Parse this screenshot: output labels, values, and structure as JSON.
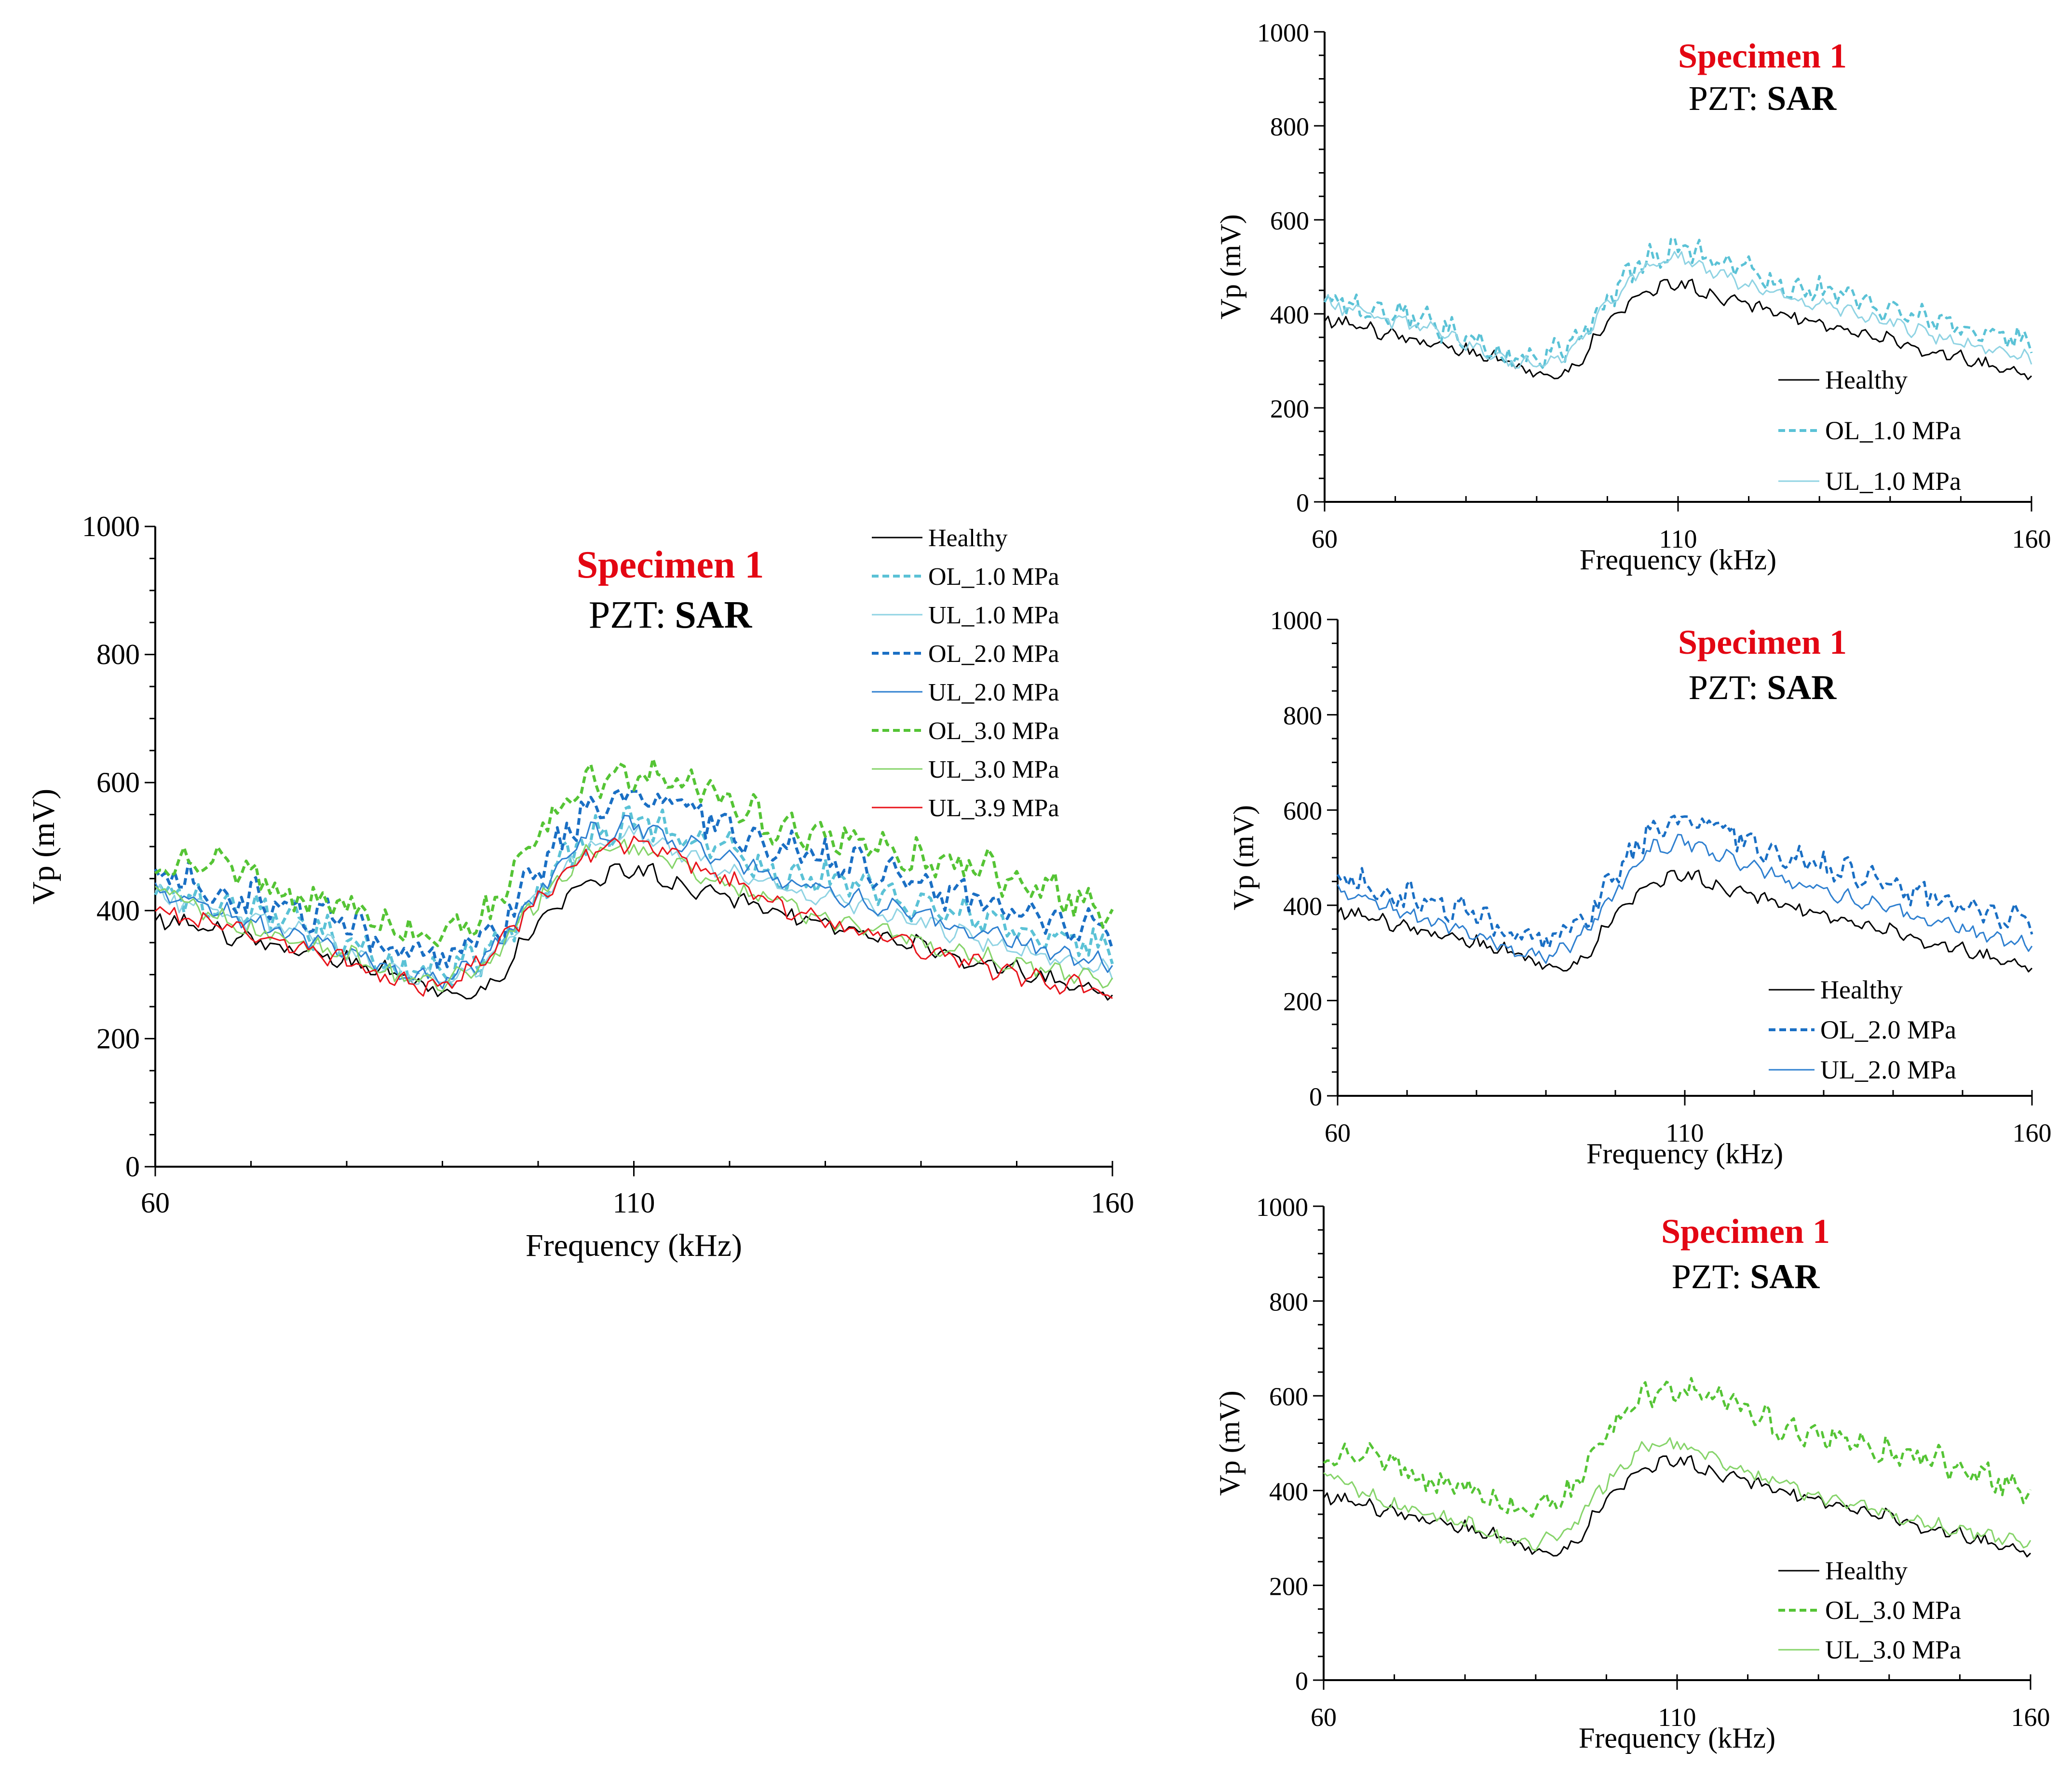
{
  "colors": {
    "Healthy": "#000000",
    "OL_1.0 MPa": "#5bc2d6",
    "UL_1.0 MPa": "#8fd3e3",
    "OL_2.0 MPa": "#1a6fc4",
    "UL_2.0 MPa": "#2f80d0",
    "OL_3.0 MPa": "#55c435",
    "UL_3.0 MPa": "#86d46a",
    "UL_3.9 MPa": "#e8141b"
  },
  "chart_data": [
    {
      "id": "main",
      "type": "line",
      "title": "Specimen 1",
      "subtitle_prefix": "PZT:",
      "subtitle_bold": "SAR",
      "xlabel": "Frequency (kHz)",
      "ylabel": "Vp (mV)",
      "xlim": [
        60,
        160
      ],
      "ylim": [
        0,
        1000
      ],
      "xticks": [
        "60",
        "110",
        "160"
      ],
      "yticks": [
        "0",
        "200",
        "400",
        "600",
        "800",
        "1000"
      ],
      "legend_position": "top-right",
      "x": [
        60,
        65,
        70,
        75,
        80,
        85,
        90,
        95,
        100,
        105,
        110,
        115,
        120,
        125,
        130,
        135,
        140,
        145,
        150,
        155,
        160
      ],
      "series": [
        {
          "name": "Healthy",
          "dash": "solid",
          "width": 1,
          "values": [
            390,
            370,
            350,
            335,
            320,
            300,
            275,
            280,
            380,
            450,
            465,
            440,
            420,
            400,
            380,
            360,
            345,
            325,
            305,
            290,
            270
          ]
        },
        {
          "name": "OL_1.0 MPa",
          "dash": "dash",
          "width": 2,
          "values": [
            440,
            415,
            400,
            380,
            350,
            310,
            300,
            340,
            430,
            510,
            545,
            510,
            490,
            460,
            450,
            430,
            410,
            390,
            370,
            350,
            335
          ]
        },
        {
          "name": "UL_1.0 MPa",
          "dash": "solid",
          "width": 1,
          "values": [
            425,
            405,
            385,
            365,
            340,
            300,
            290,
            320,
            420,
            500,
            525,
            490,
            460,
            440,
            420,
            400,
            380,
            360,
            340,
            320,
            305
          ]
        },
        {
          "name": "OL_2.0 MPa",
          "dash": "dash",
          "width": 2,
          "values": [
            460,
            440,
            420,
            400,
            380,
            340,
            330,
            360,
            460,
            560,
            580,
            560,
            530,
            500,
            480,
            460,
            440,
            420,
            400,
            380,
            370
          ]
        },
        {
          "name": "UL_2.0 MPa",
          "dash": "solid",
          "width": 1,
          "values": [
            430,
            410,
            380,
            360,
            340,
            300,
            290,
            330,
            430,
            520,
            535,
            505,
            480,
            450,
            430,
            410,
            390,
            370,
            350,
            330,
            320
          ]
        },
        {
          "name": "OL_3.0 MPa",
          "dash": "dash",
          "width": 2,
          "values": [
            470,
            480,
            450,
            420,
            410,
            370,
            360,
            400,
            520,
            600,
            610,
            600,
            570,
            530,
            520,
            500,
            480,
            470,
            450,
            420,
            400
          ]
        },
        {
          "name": "UL_3.0 MPa",
          "dash": "solid",
          "width": 1,
          "values": [
            440,
            400,
            370,
            350,
            330,
            300,
            285,
            320,
            420,
            490,
            500,
            470,
            440,
            410,
            390,
            370,
            350,
            330,
            320,
            300,
            290
          ]
        },
        {
          "name": "UL_3.9 MPa",
          "dash": "solid",
          "width": 1,
          "values": [
            400,
            380,
            370,
            340,
            320,
            290,
            280,
            330,
            420,
            490,
            510,
            480,
            450,
            410,
            380,
            360,
            340,
            320,
            300,
            285,
            270
          ]
        }
      ]
    },
    {
      "id": "s1",
      "type": "line",
      "title": "Specimen 1",
      "subtitle_prefix": "PZT:",
      "subtitle_bold": "SAR",
      "xlabel": "Frequency (kHz)",
      "ylabel": "Vp (mV)",
      "xlim": [
        60,
        160
      ],
      "ylim": [
        0,
        1000
      ],
      "xticks": [
        "60",
        "110",
        "160"
      ],
      "yticks": [
        "0",
        "200",
        "400",
        "600",
        "800",
        "1000"
      ],
      "legend_position": "bottom-right",
      "x": [
        60,
        65,
        70,
        75,
        80,
        85,
        90,
        95,
        100,
        105,
        110,
        115,
        120,
        125,
        130,
        135,
        140,
        145,
        150,
        155,
        160
      ],
      "series": [
        {
          "name": "Healthy",
          "dash": "solid",
          "width": 1,
          "values": [
            390,
            370,
            350,
            335,
            320,
            300,
            275,
            280,
            380,
            450,
            465,
            440,
            420,
            400,
            380,
            360,
            345,
            325,
            305,
            290,
            270
          ]
        },
        {
          "name": "OL_1.0 MPa",
          "dash": "dash",
          "width": 2,
          "values": [
            440,
            415,
            400,
            380,
            350,
            310,
            300,
            340,
            430,
            510,
            545,
            510,
            490,
            460,
            450,
            430,
            410,
            390,
            370,
            350,
            335
          ]
        },
        {
          "name": "UL_1.0 MPa",
          "dash": "solid",
          "width": 1,
          "values": [
            425,
            405,
            385,
            365,
            340,
            300,
            290,
            320,
            420,
            500,
            525,
            490,
            460,
            440,
            420,
            400,
            380,
            360,
            340,
            320,
            305
          ]
        }
      ]
    },
    {
      "id": "s2",
      "type": "line",
      "title": "Specimen 1",
      "subtitle_prefix": "PZT:",
      "subtitle_bold": "SAR",
      "xlabel": "Frequency (kHz)",
      "ylabel": "Vp (mV)",
      "xlim": [
        60,
        160
      ],
      "ylim": [
        0,
        1000
      ],
      "xticks": [
        "60",
        "110",
        "160"
      ],
      "yticks": [
        "0",
        "200",
        "400",
        "600",
        "800",
        "1000"
      ],
      "legend_position": "bottom-right",
      "x": [
        60,
        65,
        70,
        75,
        80,
        85,
        90,
        95,
        100,
        105,
        110,
        115,
        120,
        125,
        130,
        135,
        140,
        145,
        150,
        155,
        160
      ],
      "series": [
        {
          "name": "Healthy",
          "dash": "solid",
          "width": 1,
          "values": [
            390,
            370,
            350,
            335,
            320,
            300,
            275,
            280,
            380,
            450,
            465,
            440,
            420,
            400,
            380,
            360,
            345,
            325,
            305,
            290,
            270
          ]
        },
        {
          "name": "OL_2.0 MPa",
          "dash": "dash",
          "width": 2,
          "values": [
            460,
            440,
            420,
            400,
            380,
            340,
            330,
            360,
            460,
            560,
            580,
            560,
            530,
            500,
            480,
            460,
            440,
            420,
            400,
            380,
            370
          ]
        },
        {
          "name": "UL_2.0 MPa",
          "dash": "solid",
          "width": 1,
          "values": [
            430,
            410,
            380,
            360,
            340,
            300,
            290,
            330,
            430,
            520,
            535,
            505,
            480,
            450,
            430,
            410,
            390,
            370,
            350,
            330,
            320
          ]
        }
      ]
    },
    {
      "id": "s3",
      "type": "line",
      "title": "Specimen 1",
      "subtitle_prefix": "PZT:",
      "subtitle_bold": "SAR",
      "xlabel": "Frequency (kHz)",
      "ylabel": "Vp (mV)",
      "xlim": [
        60,
        160
      ],
      "ylim": [
        0,
        1000
      ],
      "xticks": [
        "60",
        "110",
        "160"
      ],
      "yticks": [
        "0",
        "200",
        "400",
        "600",
        "800",
        "1000"
      ],
      "legend_position": "bottom-right",
      "x": [
        60,
        65,
        70,
        75,
        80,
        85,
        90,
        95,
        100,
        105,
        110,
        115,
        120,
        125,
        130,
        135,
        140,
        145,
        150,
        155,
        160
      ],
      "series": [
        {
          "name": "Healthy",
          "dash": "solid",
          "width": 1,
          "values": [
            390,
            370,
            350,
            335,
            320,
            300,
            275,
            280,
            380,
            450,
            465,
            440,
            420,
            400,
            380,
            360,
            345,
            325,
            305,
            290,
            270
          ]
        },
        {
          "name": "OL_3.0 MPa",
          "dash": "dash",
          "width": 2,
          "values": [
            470,
            480,
            450,
            420,
            410,
            370,
            360,
            400,
            520,
            600,
            610,
            600,
            570,
            530,
            520,
            500,
            480,
            470,
            450,
            420,
            400
          ]
        },
        {
          "name": "UL_3.0 MPa",
          "dash": "solid",
          "width": 1,
          "values": [
            440,
            400,
            370,
            350,
            330,
            300,
            285,
            320,
            420,
            490,
            500,
            470,
            440,
            410,
            390,
            370,
            350,
            330,
            320,
            300,
            290
          ]
        }
      ]
    }
  ]
}
